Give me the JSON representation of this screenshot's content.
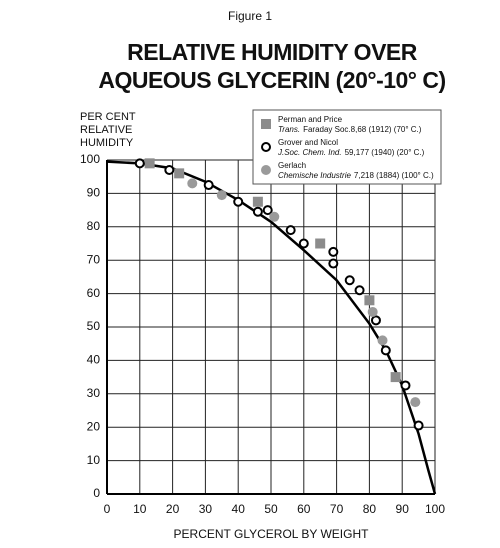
{
  "chart_data": {
    "type": "scatter",
    "figure_label": "Figure 1",
    "title": [
      "RELATIVE HUMIDITY OVER",
      "AQUEOUS GLYCERIN (20°-10° C)"
    ],
    "ylabel": [
      "PER CENT",
      "RELATIVE",
      "HUMIDITY"
    ],
    "xlabel": "PERCENT GLYCEROL BY WEIGHT",
    "xlim": [
      0,
      100
    ],
    "ylim": [
      0,
      100
    ],
    "xticks": [
      0,
      10,
      20,
      30,
      40,
      50,
      60,
      70,
      80,
      90,
      100
    ],
    "yticks": [
      0,
      10,
      20,
      30,
      40,
      50,
      60,
      70,
      80,
      90,
      100
    ],
    "grid": true,
    "series": [
      {
        "name": "Perman and Price",
        "journal": "Trans.",
        "reference": "Faraday Soc.8,68 (1912) (70° C.)",
        "marker": "square",
        "color": "#8c8c8c",
        "x": [
          13,
          22,
          46,
          65,
          80,
          88
        ],
        "values": [
          99,
          96,
          87.5,
          75,
          58,
          35
        ]
      },
      {
        "name": "Grover and Nicol",
        "journal": "J.Soc. Chem. Ind.",
        "reference": "59,177 (1940) (20° C.)",
        "marker": "open-circle",
        "color": "#000000",
        "x": [
          10,
          19,
          31,
          40,
          46,
          49,
          56,
          60,
          69,
          69,
          74,
          77,
          82,
          85,
          91,
          95
        ],
        "values": [
          99,
          97,
          92.5,
          87.5,
          84.5,
          85,
          79,
          75,
          72.5,
          69,
          64,
          61,
          52,
          43,
          32.5,
          20.5
        ]
      },
      {
        "name": "Gerlach",
        "journal": "Chemische Industrie",
        "reference": "7,218 (1884) (100° C.)",
        "marker": "circle",
        "color": "#9a9a9a",
        "x": [
          26,
          35,
          51,
          81,
          84,
          94
        ],
        "values": [
          93,
          89.5,
          83,
          54.5,
          46,
          27.5
        ]
      },
      {
        "marker": "line",
        "color": "#000000",
        "x": [
          0,
          10,
          20,
          30,
          40,
          50,
          60,
          70,
          80,
          85,
          90,
          95,
          98,
          100
        ],
        "values": [
          99.5,
          99,
          97.5,
          93.5,
          88,
          81.5,
          73,
          64,
          51,
          43,
          32.5,
          18,
          7,
          0
        ]
      }
    ]
  }
}
